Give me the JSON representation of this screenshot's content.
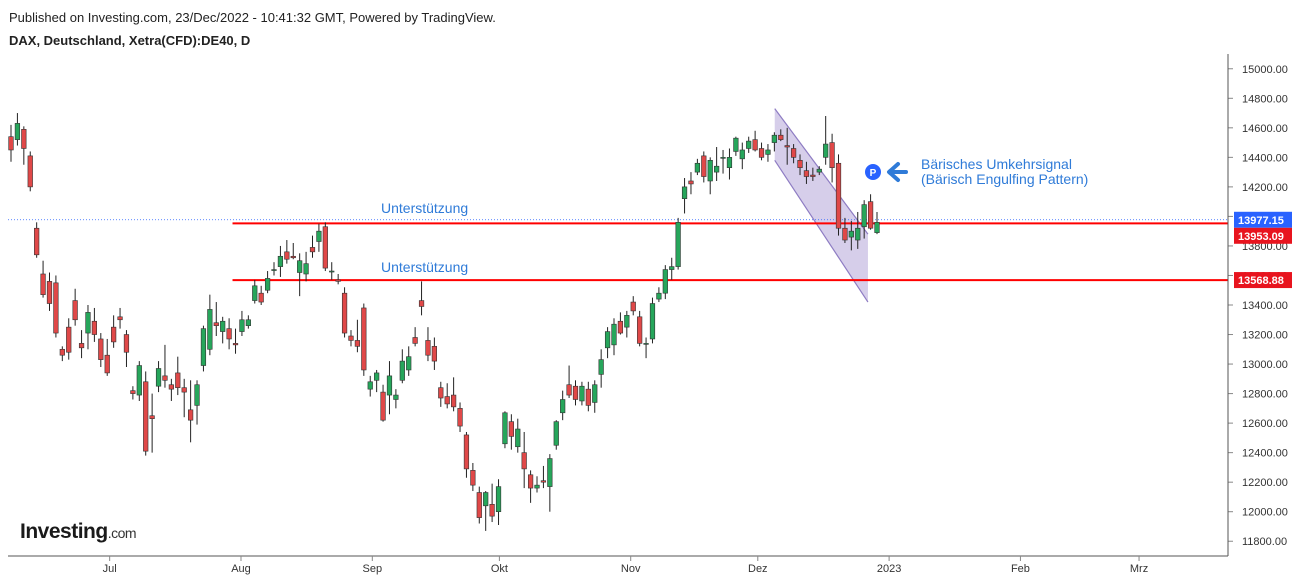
{
  "header": {
    "published": "Published on Investing.com, 23/Dec/2022 - 10:41:32 GMT, Powered by TradingView.",
    "symbol": "DAX, Deutschland, Xetra(CFD):DE40, D"
  },
  "logo": {
    "name": "Investing",
    "domain": ".com"
  },
  "colors": {
    "up": "#26a65b",
    "down": "#e04848",
    "wick": "#222222",
    "support": "#ff0000",
    "channel_fill": "#b4a6d9",
    "channel_line": "#8e7cc3",
    "annotation": "#2f7bd8",
    "price_label_blue": "#2962ff",
    "price_label_red": "#e8141e"
  },
  "annotations": {
    "support_label_1": "Unterstützung",
    "support_label_2": "Unterstützung",
    "pattern_line1": "Bärisches Umkehrsignal",
    "pattern_line2": "(Bärisch Engulfing Pattern)",
    "pattern_marker": "P",
    "arrow_icon": "arrow-left-icon"
  },
  "chart_data": {
    "type": "candlestick",
    "title": "DAX, Deutschland, Xetra(CFD):DE40, D",
    "ylim": [
      11700,
      15100
    ],
    "y_ticks": [
      11800,
      12000,
      12200,
      12400,
      12600,
      12800,
      13000,
      13200,
      13400,
      13600,
      13800,
      14000,
      14200,
      14400,
      14600,
      14800,
      15000
    ],
    "y_tick_labels": [
      "11800.00",
      "12000.00",
      "12200.00",
      "12400.00",
      "12600.00",
      "12800.00",
      "13000.00",
      "13200.00",
      "13400.00",
      "13600.00",
      "13800.00",
      "14000.00",
      "14200.00",
      "14400.00",
      "14600.00",
      "14800.00",
      "15000.00"
    ],
    "x_range": [
      "2022-06-07",
      "2023-03-22"
    ],
    "x_ticks": [
      {
        "date": "2022-07-01",
        "label": "Jul"
      },
      {
        "date": "2022-08-01",
        "label": "Aug"
      },
      {
        "date": "2022-09-01",
        "label": "Sep"
      },
      {
        "date": "2022-10-01",
        "label": "Okt"
      },
      {
        "date": "2022-11-01",
        "label": "Nov"
      },
      {
        "date": "2022-12-01",
        "label": "Dez"
      },
      {
        "date": "2023-01-01",
        "label": "2023"
      },
      {
        "date": "2023-02-01",
        "label": "Feb"
      },
      {
        "date": "2023-03-01",
        "label": "Mrz"
      }
    ],
    "candles_ohlc": [
      [
        14540,
        14620,
        14370,
        14450
      ],
      [
        14520,
        14700,
        14480,
        14630
      ],
      [
        14590,
        14610,
        14350,
        14460
      ],
      [
        14410,
        14440,
        14170,
        14200
      ],
      [
        13920,
        13960,
        13720,
        13740
      ],
      [
        13610,
        13700,
        13450,
        13470
      ],
      [
        13560,
        13620,
        13360,
        13410
      ],
      [
        13550,
        13600,
        13180,
        13210
      ],
      [
        13100,
        13120,
        13020,
        13060
      ],
      [
        13250,
        13310,
        13030,
        13080
      ],
      [
        13430,
        13510,
        13260,
        13300
      ],
      [
        13140,
        13230,
        13040,
        13110
      ],
      [
        13210,
        13400,
        13100,
        13350
      ],
      [
        13290,
        13380,
        13150,
        13200
      ],
      [
        13170,
        13210,
        12980,
        13030
      ],
      [
        13060,
        13170,
        12920,
        12940
      ],
      [
        13250,
        13330,
        13110,
        13150
      ],
      [
        13320,
        13380,
        13240,
        13300
      ],
      [
        13200,
        13230,
        12980,
        13080
      ],
      [
        12820,
        12850,
        12760,
        12800
      ],
      [
        12790,
        13020,
        12750,
        12990
      ],
      [
        12880,
        12950,
        12380,
        12410
      ],
      [
        12650,
        12800,
        12400,
        12630
      ],
      [
        12850,
        13020,
        12810,
        12970
      ],
      [
        12920,
        13130,
        12840,
        12890
      ],
      [
        12860,
        12900,
        12750,
        12830
      ],
      [
        12940,
        13050,
        12790,
        12840
      ],
      [
        12840,
        12900,
        12640,
        12810
      ],
      [
        12690,
        12890,
        12470,
        12620
      ],
      [
        12720,
        12890,
        12590,
        12860
      ],
      [
        12990,
        13260,
        12950,
        13240
      ],
      [
        13100,
        13470,
        13060,
        13370
      ],
      [
        13280,
        13420,
        13190,
        13260
      ],
      [
        13220,
        13320,
        13140,
        13290
      ],
      [
        13240,
        13310,
        13100,
        13170
      ],
      [
        13140,
        13240,
        13070,
        13130
      ],
      [
        13220,
        13360,
        13190,
        13300
      ],
      [
        13260,
        13330,
        13240,
        13300
      ],
      [
        13430,
        13570,
        13410,
        13530
      ],
      [
        13480,
        13530,
        13400,
        13420
      ],
      [
        13500,
        13630,
        13480,
        13580
      ],
      [
        13640,
        13690,
        13600,
        13640
      ],
      [
        13660,
        13800,
        13590,
        13730
      ],
      [
        13760,
        13840,
        13680,
        13710
      ],
      [
        13730,
        13820,
        13710,
        13720
      ],
      [
        13620,
        13750,
        13460,
        13700
      ],
      [
        13610,
        13760,
        13560,
        13680
      ],
      [
        13790,
        13870,
        13720,
        13760
      ],
      [
        13830,
        13950,
        13760,
        13900
      ],
      [
        13930,
        13960,
        13630,
        13650
      ],
      [
        13630,
        13690,
        13570,
        13630
      ],
      [
        13570,
        13610,
        13540,
        13560
      ],
      [
        13480,
        13520,
        13180,
        13210
      ],
      [
        13190,
        13230,
        13120,
        13160
      ],
      [
        13160,
        13300,
        13080,
        13120
      ],
      [
        13380,
        13410,
        12920,
        12960
      ],
      [
        12830,
        12920,
        12780,
        12880
      ],
      [
        12890,
        12960,
        12810,
        12940
      ],
      [
        12810,
        12860,
        12610,
        12620
      ],
      [
        12790,
        13020,
        12660,
        12920
      ],
      [
        12760,
        12830,
        12700,
        12790
      ],
      [
        12890,
        13100,
        12870,
        13020
      ],
      [
        12960,
        13120,
        12920,
        13050
      ],
      [
        13180,
        13250,
        13120,
        13140
      ],
      [
        13430,
        13560,
        13330,
        13390
      ],
      [
        13160,
        13250,
        13020,
        13060
      ],
      [
        13120,
        13180,
        12960,
        13020
      ],
      [
        12840,
        12880,
        12710,
        12770
      ],
      [
        12780,
        12870,
        12700,
        12730
      ],
      [
        12790,
        12910,
        12680,
        12710
      ],
      [
        12700,
        12740,
        12540,
        12580
      ],
      [
        12520,
        12540,
        12230,
        12290
      ],
      [
        12280,
        12330,
        12140,
        12180
      ],
      [
        12130,
        12170,
        11920,
        11960
      ],
      [
        12040,
        12140,
        11870,
        12130
      ],
      [
        12050,
        12190,
        11930,
        11970
      ],
      [
        12000,
        12220,
        11910,
        12170
      ],
      [
        12460,
        12680,
        12430,
        12670
      ],
      [
        12610,
        12660,
        12420,
        12510
      ],
      [
        12440,
        12630,
        12400,
        12560
      ],
      [
        12400,
        12540,
        12160,
        12290
      ],
      [
        12250,
        12280,
        12060,
        12160
      ],
      [
        12160,
        12240,
        12130,
        12180
      ],
      [
        12210,
        12310,
        12160,
        12200
      ],
      [
        12170,
        12390,
        12000,
        12360
      ],
      [
        12450,
        12620,
        12420,
        12610
      ],
      [
        12670,
        12820,
        12620,
        12760
      ],
      [
        12860,
        12990,
        12770,
        12790
      ],
      [
        12850,
        12890,
        12720,
        12760
      ],
      [
        12750,
        12880,
        12720,
        12850
      ],
      [
        12830,
        12880,
        12680,
        12720
      ],
      [
        12740,
        12890,
        12670,
        12860
      ],
      [
        12930,
        13100,
        12840,
        13030
      ],
      [
        13110,
        13250,
        13040,
        13220
      ],
      [
        13130,
        13310,
        13060,
        13270
      ],
      [
        13290,
        13350,
        13200,
        13210
      ],
      [
        13250,
        13360,
        13180,
        13330
      ],
      [
        13420,
        13460,
        13330,
        13360
      ],
      [
        13320,
        13360,
        13120,
        13140
      ],
      [
        13140,
        13180,
        13040,
        13140
      ],
      [
        13170,
        13450,
        13140,
        13410
      ],
      [
        13440,
        13520,
        13420,
        13480
      ],
      [
        13480,
        13670,
        13440,
        13640
      ],
      [
        13640,
        13720,
        13570,
        13660
      ],
      [
        13660,
        13990,
        13640,
        13960
      ],
      [
        14120,
        14260,
        14020,
        14200
      ],
      [
        14240,
        14300,
        14150,
        14220
      ],
      [
        14300,
        14390,
        14280,
        14360
      ],
      [
        14410,
        14440,
        14230,
        14270
      ],
      [
        14240,
        14400,
        14150,
        14380
      ],
      [
        14300,
        14470,
        14240,
        14340
      ],
      [
        14400,
        14450,
        14290,
        14400
      ],
      [
        14330,
        14460,
        14250,
        14400
      ],
      [
        14440,
        14540,
        14410,
        14530
      ],
      [
        14390,
        14500,
        14320,
        14450
      ],
      [
        14460,
        14540,
        14430,
        14510
      ],
      [
        14520,
        14580,
        14440,
        14450
      ],
      [
        14460,
        14500,
        14380,
        14400
      ],
      [
        14420,
        14490,
        14370,
        14450
      ],
      [
        14500,
        14570,
        14440,
        14550
      ],
      [
        14550,
        14590,
        14510,
        14520
      ],
      [
        14480,
        14600,
        14350,
        14470
      ],
      [
        14460,
        14490,
        14360,
        14400
      ],
      [
        14380,
        14420,
        14280,
        14330
      ],
      [
        14310,
        14370,
        14220,
        14270
      ],
      [
        14280,
        14330,
        14240,
        14270
      ],
      [
        14300,
        14340,
        14280,
        14320
      ],
      [
        14400,
        14680,
        14350,
        14490
      ],
      [
        14500,
        14560,
        14230,
        14330
      ],
      [
        14360,
        14420,
        13870,
        13920
      ],
      [
        13920,
        13990,
        13820,
        13840
      ],
      [
        13860,
        13970,
        13770,
        13900
      ],
      [
        13840,
        14030,
        13780,
        13920
      ],
      [
        13930,
        14110,
        13850,
        14080
      ],
      [
        14100,
        14150,
        13910,
        13920
      ],
      [
        13890,
        14030,
        13880,
        13960
      ]
    ],
    "support_levels": [
      {
        "label": "Unterstützung",
        "value": 13953.09
      },
      {
        "label": "Unterstützung",
        "value": 13568.88
      }
    ],
    "last_price": 13977.15,
    "price_labels": [
      "13977.15",
      "13953.09",
      "13568.88"
    ],
    "channel": {
      "upper": [
        [
          "2022-12-05",
          14730
        ],
        [
          "2022-12-27",
          13880
        ]
      ],
      "lower": [
        [
          "2022-12-05",
          14380
        ],
        [
          "2022-12-27",
          13420
        ]
      ]
    },
    "annotation_text": [
      "Bärisches Umkehrsignal",
      "(Bärisch Engulfing Pattern)"
    ]
  }
}
